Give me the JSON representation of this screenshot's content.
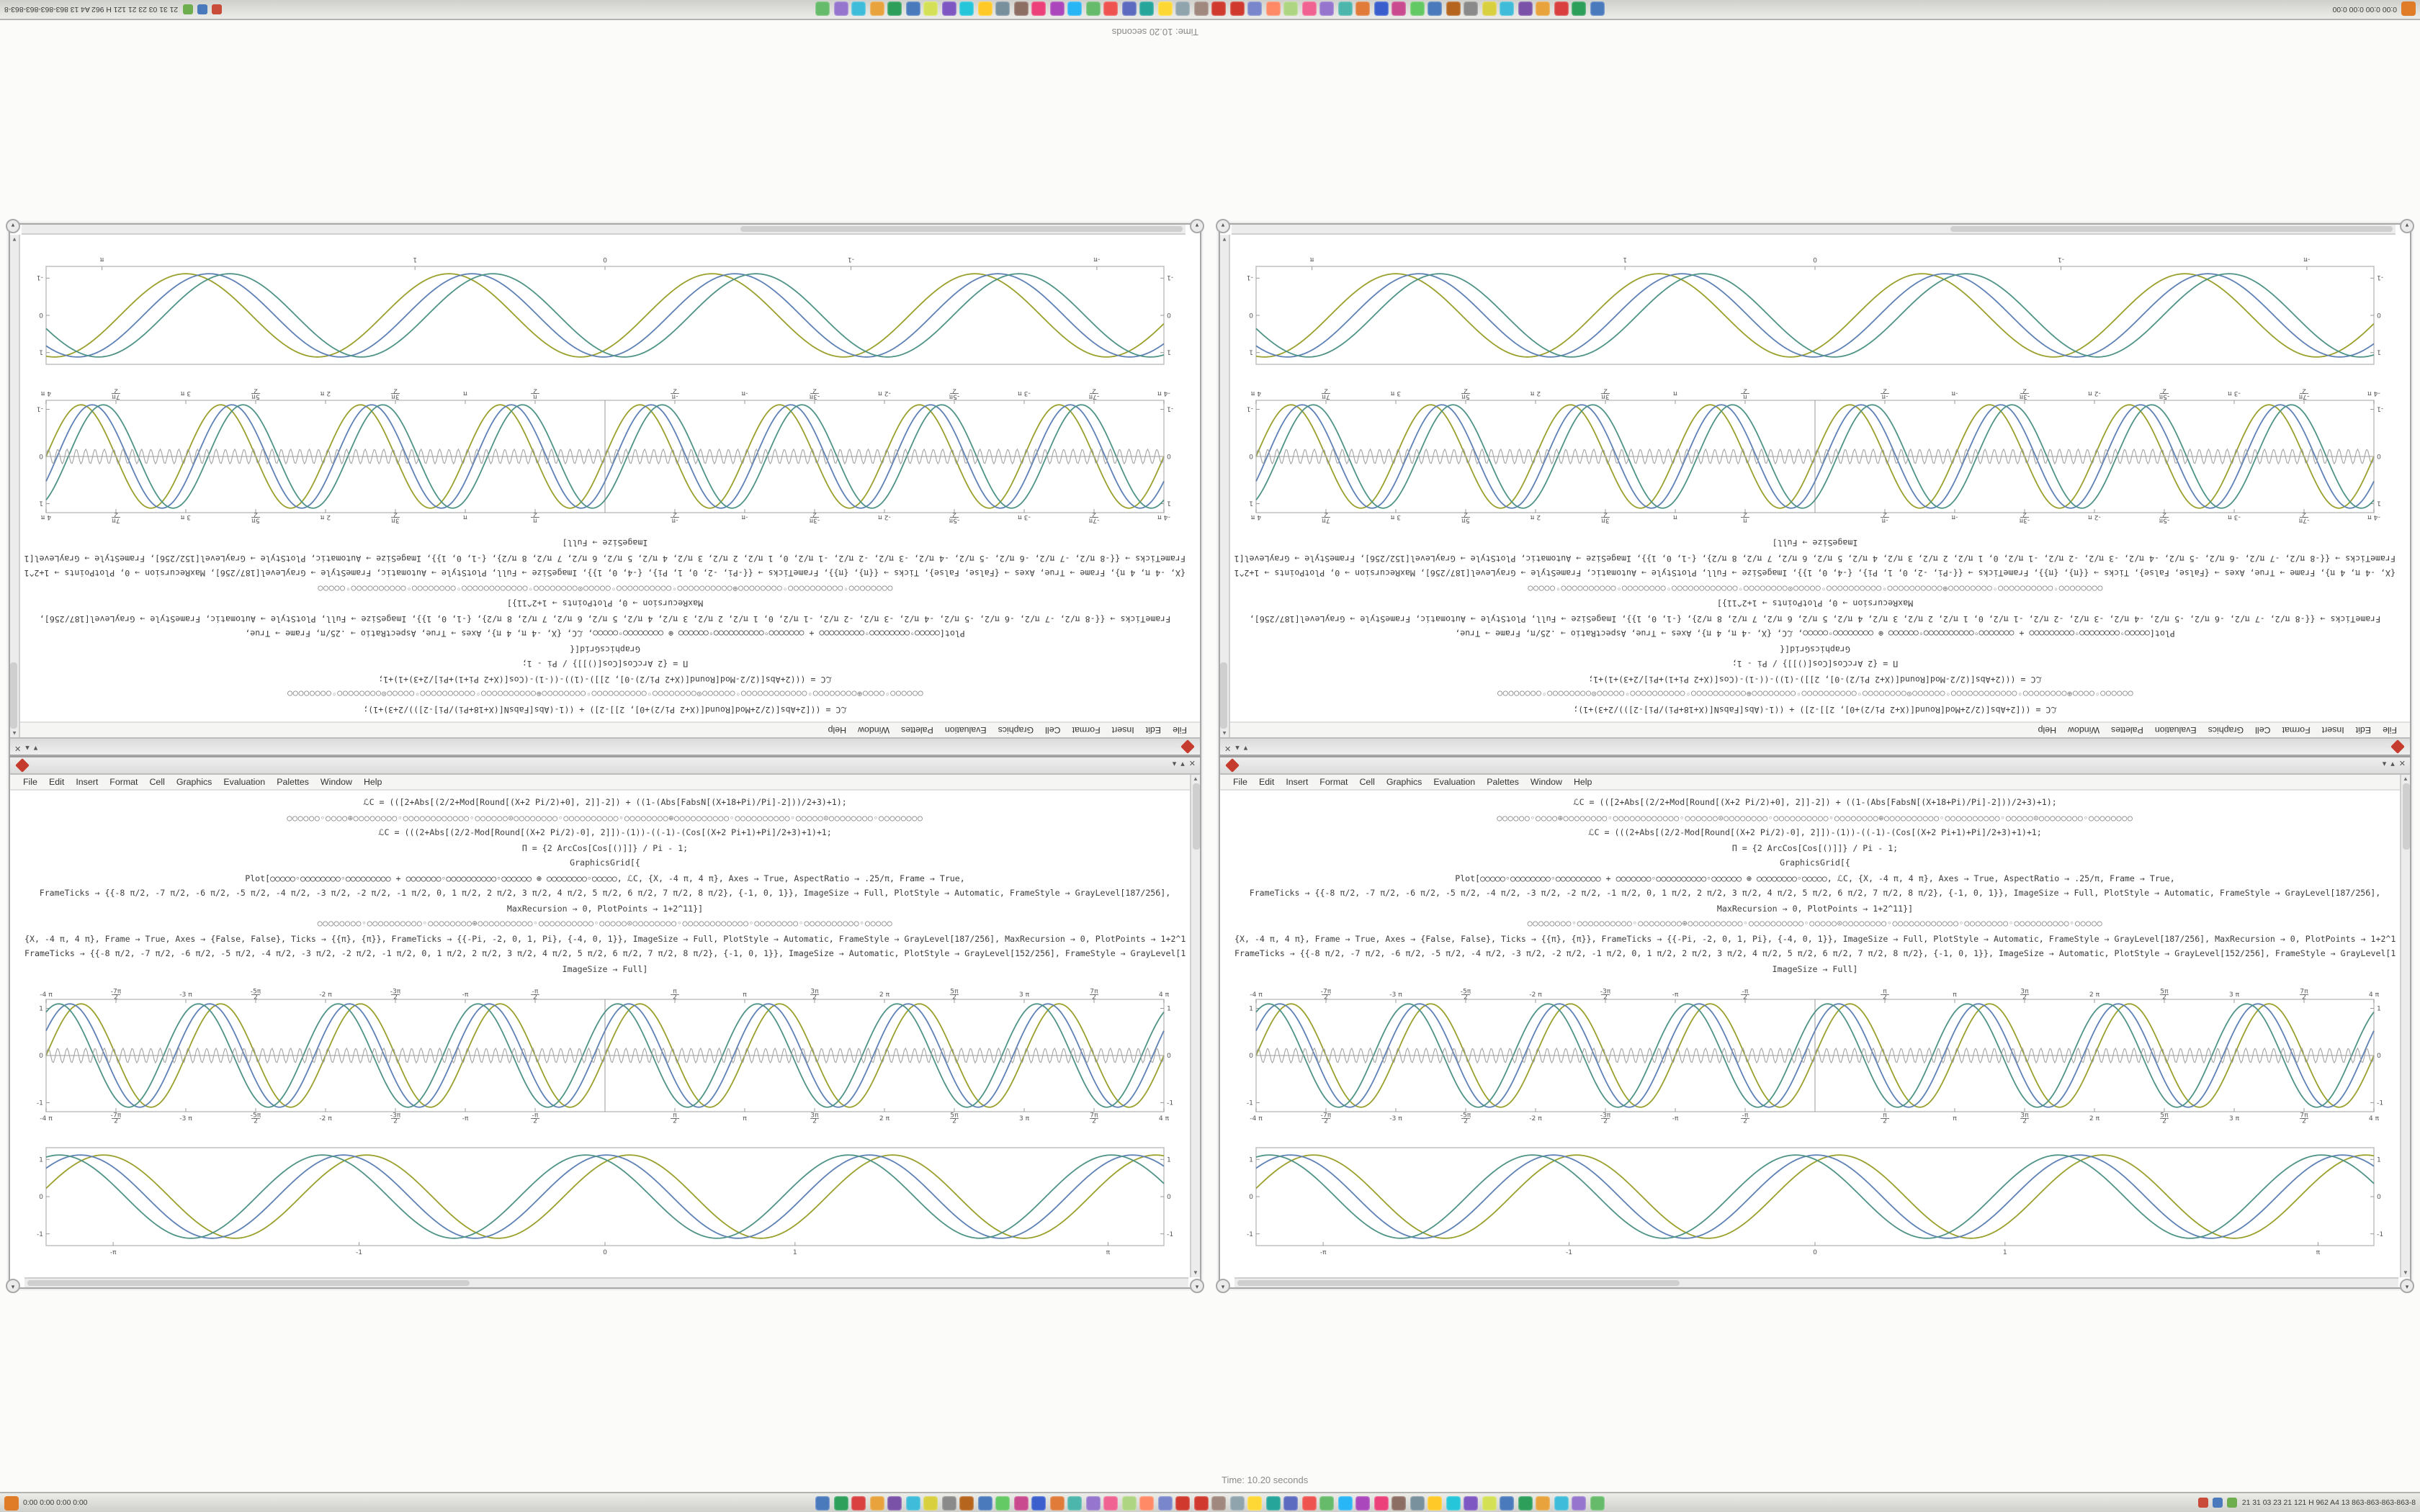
{
  "status_text": "Time: 10.20 seconds",
  "window": {
    "title": "",
    "title_controls": [
      "▾",
      "▴",
      "✕"
    ],
    "menu": [
      "File",
      "Edit",
      "Insert",
      "Format",
      "Cell",
      "Graphics",
      "Evaluation",
      "Palettes",
      "Window",
      "Help"
    ],
    "round_button_glyph": "▾",
    "scrollbar": {
      "up": "▲",
      "down": "▼",
      "left": "◂",
      "right": "▸"
    },
    "code_lines": [
      {
        "kind": "code",
        "text": "ℒC = (([2+Abs[(2/2+Mod[Round[(X+2 Pi/2)+0], 2]]-2]) + ((1-(Abs[FabsN[(X+18+Pi)/Pi]-2]))/2+3)+1);"
      },
      {
        "kind": "circles",
        "text": "○○○○○○◦○○○○⊕○○○○○○○○◦○○○○○○○○○○○○◦○○○○○○⊙○○○○○○○○◦○○○○○○○○○○◦○○○○○○○○⊕○○○○○○○○○○◦○○○○○○○○○○◦○○○○○⊙○○○○○○○○◦○○○○○○○○"
      },
      {
        "kind": "code",
        "text": "ℒC = (((2+Abs[(2/2-Mod[Round[(X+2 Pi/2)-0], 2]])-(1))-((-1)-(Cos[(X+2 Pi+1)+Pi]/2+3)+1)+1;"
      },
      {
        "kind": "code",
        "text": "Π = {2 ArcCos[Cos[()]]} / Pi - 1;"
      },
      {
        "kind": "code",
        "text": "GraphicsGrid[{"
      },
      {
        "kind": "code",
        "text": "Plot[○○○○○◦○○○○○○○○◦○○○○○○○○○ + ○○○○○○○◦○○○○○○○○○○◦○○○○○○ ⊕ ○○○○○○○○◦○○○○○, ℒC, {X, -4 π, 4 π}, Axes → True, AspectRatio → .25/π, Frame → True,"
      },
      {
        "kind": "code",
        "text": "FrameTicks → {{-8 π/2, -7 π/2, -6 π/2, -5 π/2, -4 π/2, -3 π/2, -2 π/2, -1 π/2, 0, 1 π/2, 2 π/2, 3 π/2, 4 π/2, 5 π/2, 6 π/2, 7 π/2, 8 π/2}, {-1, 0, 1}}, ImageSize → Full, PlotStyle → Automatic, FrameStyle → GrayLevel[187/256],"
      },
      {
        "kind": "code",
        "text": "MaxRecursion → 0, PlotPoints → 1+2^11}]"
      },
      {
        "kind": "circles",
        "text": "○○○○○○○○◦○○○○○○○○○○◦○○○○○○○○⊕○○○○○○○○○○◦○○○○○○○○○○◦○○○○○⊙○○○○○○○○◦○○○○○○○○○○○○◦○○○○○○○○◦○○○○○○○○○○◦○○○○○"
      },
      {
        "kind": "code",
        "text": "{X, -4 π, 4 π}, Frame → True, Axes → {False, False}, Ticks → {{π}, {π}}, FrameTicks → {{-Pi, -2, 0, 1, Pi}, {-4, 0, 1}}, ImageSize → Full, PlotStyle → Automatic, FrameStyle → GrayLevel[187/256], MaxRecursion → 0, PlotPoints → 1+2^11}],"
      },
      {
        "kind": "code",
        "text": "FrameTicks → {{-8 π/2, -7 π/2, -6 π/2, -5 π/2, -4 π/2, -3 π/2, -2 π/2, -1 π/2, 0, 1 π/2, 2 π/2, 3 π/2, 4 π/2, 5 π/2, 6 π/2, 7 π/2, 8 π/2}, {-1, 0, 1}}, ImageSize → Automatic, PlotStyle → GrayLevel[152/256], FrameStyle → GrayLevel[187/256], MaxRecursion → 0, PlotPoints → 1+2^11}]"
      },
      {
        "kind": "code",
        "text": "ImageSize → Full]"
      }
    ]
  },
  "chart_data": [
    {
      "type": "line",
      "title": "",
      "xlabel": "",
      "ylabel": "",
      "frame": true,
      "axes": true,
      "xlim_pi": [
        -4,
        4
      ],
      "ylim": [
        -1,
        1
      ],
      "x_tick_sides": "top+bottom",
      "x_tick_labels": [
        "-4 π",
        "-7π/2",
        "-3 π",
        "-5π/2",
        "-2 π",
        "-3π/2",
        "-π",
        "-π/2",
        "",
        "π/2",
        "π",
        "3π/2",
        "2 π",
        "5π/2",
        "3 π",
        "7π/2",
        "4 π"
      ],
      "y_ticks": [
        {
          "pos": 0.08,
          "label": "1"
        },
        {
          "pos": 0.5,
          "label": "0"
        },
        {
          "pos": 0.92,
          "label": "-1"
        }
      ],
      "series": [
        {
          "name": "sin-olive",
          "color": "#9aa02c",
          "periods": 8,
          "phase": 0.0,
          "amplitude": 0.92,
          "width": 0.9
        },
        {
          "name": "sin-blue",
          "color": "#5e81b5",
          "periods": 8,
          "phase": 0.5,
          "amplitude": 0.92,
          "width": 0.9
        },
        {
          "name": "sin-teal",
          "color": "#4f9387",
          "periods": 8,
          "phase": 1.0,
          "amplitude": 0.92,
          "width": 0.9
        },
        {
          "name": "hf-gray-band",
          "color": "#a3a3a3",
          "periods": 120,
          "phase": 0.0,
          "amplitude": 0.13,
          "width": 0.55
        }
      ]
    },
    {
      "type": "line",
      "title": "",
      "xlabel": "",
      "ylabel": "",
      "frame": true,
      "axes": false,
      "ylim": [
        -1,
        1
      ],
      "x_tick_sides": "bottom",
      "x_ticks": [
        {
          "pos": 0.06,
          "label": "-π"
        },
        {
          "pos": 0.28,
          "label": "-1"
        },
        {
          "pos": 0.5,
          "label": "0"
        },
        {
          "pos": 0.67,
          "label": "1"
        },
        {
          "pos": 0.95,
          "label": "π"
        }
      ],
      "y_ticks": [
        {
          "pos": 0.12,
          "label": "1"
        },
        {
          "pos": 0.5,
          "label": "0"
        },
        {
          "pos": 0.88,
          "label": "-1"
        }
      ],
      "series": [
        {
          "name": "sin-olive",
          "color": "#9aa02c",
          "periods": 4.25,
          "phase": 0.2,
          "amplitude": 0.85,
          "width": 0.9
        },
        {
          "name": "sin-blue",
          "color": "#5e81b5",
          "periods": 4.25,
          "phase": 0.75,
          "amplitude": 0.85,
          "width": 0.9
        },
        {
          "name": "sin-teal",
          "color": "#4f9387",
          "periods": 4.25,
          "phase": 1.25,
          "amplitude": 0.85,
          "width": 0.9
        }
      ]
    }
  ],
  "taskbar": {
    "left_text": "0:00  0:00  0:00  0:00",
    "right_text": "21 31 03 23 21 121 H 962 A4 13 863-863-863-863-8",
    "icon_colors": [
      "#4a7abc",
      "#2e9e5b",
      "#d93f3f",
      "#e8a33d",
      "#7a52a8",
      "#3fbcd9",
      "#d9d03f",
      "#8a8a8a",
      "#b5651d",
      "#4a7abc",
      "#63c963",
      "#c94a8e",
      "#3a5fcd",
      "#e07b39",
      "#4db6ac",
      "#9575cd",
      "#f06292",
      "#aed581",
      "#ff8a65",
      "#7986cb",
      "#d03a2e",
      "#d03a2e",
      "#a1887f",
      "#90a4ae",
      "#fdd835",
      "#26a69a",
      "#5c6bc0",
      "#ef5350",
      "#66bb6a",
      "#29b6f6",
      "#ab47bc",
      "#ec407a",
      "#8d6e63",
      "#78909c",
      "#ffca28",
      "#26c6da",
      "#7e57c2",
      "#d4e157",
      "#4a7abc",
      "#2e9e5b",
      "#e8a33d",
      "#3fbcd9",
      "#9575cd",
      "#66bb6a"
    ],
    "tray_dots": [
      "#6fae4f",
      "#4a7abc",
      "#c94b3a"
    ]
  }
}
